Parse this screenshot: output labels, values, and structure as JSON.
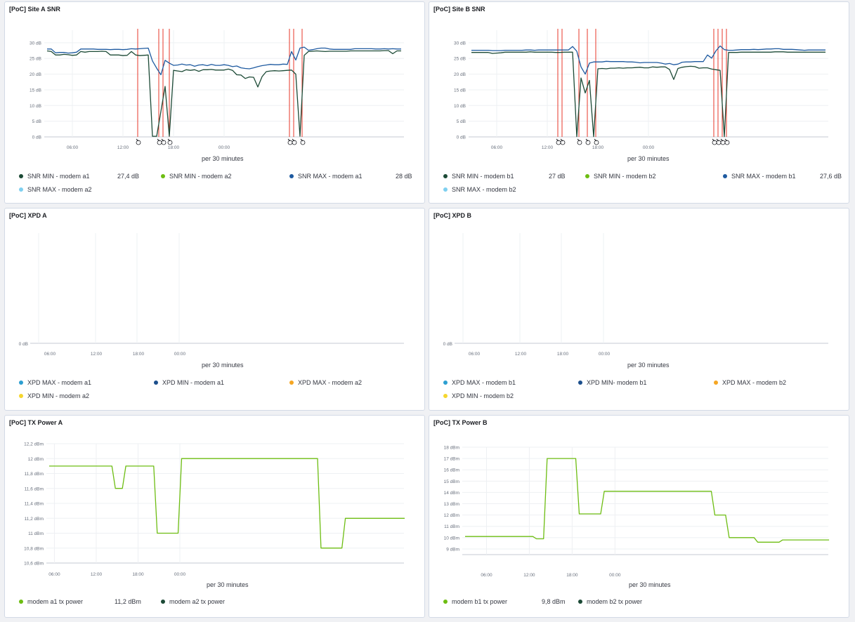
{
  "colors": {
    "grid": "#eef0f3",
    "axis": "#c5cad3",
    "tick_text": "#69707d",
    "annotation": "#e7372a",
    "dark_green": "#1c4a36",
    "lime": "#6dbd12",
    "blue": "#1e5aa0",
    "cyan": "#2d9fd1",
    "dark_blue": "#1c4f8c",
    "orange": "#f5a623",
    "yellow": "#f5d62e",
    "light_blue": "#7fd0f0"
  },
  "panels": [
    {
      "id": "snr-a",
      "title": "[PoC] Site A SNR",
      "x_title": "per 30 minutes",
      "chart_data": {
        "type": "line",
        "ylabel_unit": "dB",
        "y_ticks": [
          "0 dB",
          "5 dB",
          "10 dB",
          "15 dB",
          "20 dB",
          "25 dB",
          "30 dB"
        ],
        "ylim": [
          0,
          34
        ],
        "x_ticks": [
          "06:00",
          "12:00",
          "18:00",
          "00:00"
        ],
        "x_tick_idx": [
          6,
          18,
          30,
          42
        ],
        "annotations_x": [
          21.5,
          26.5,
          27.5,
          29,
          57.5,
          58.5,
          60.5
        ],
        "series": [
          {
            "name": "SNR MIN - modem a1",
            "color": "#1c4a36",
            "values": [
              27.4,
              27.2,
              26.1,
              26.1,
              26.3,
              26.2,
              26.0,
              26.1,
              27.2,
              27.0,
              27.2,
              27.2,
              27.2,
              27.3,
              27.2,
              26.1,
              26.1,
              26.1,
              25.9,
              26.0,
              27.2,
              26.1,
              25.9,
              26.0,
              26.1,
              0.2,
              0.2,
              8.1,
              16.1,
              0.2,
              21.2,
              21.0,
              20.8,
              21.4,
              21.2,
              21.4,
              20.9,
              21.4,
              21.4,
              21.5,
              21.3,
              21.3,
              21.3,
              21.6,
              21.2,
              19.8,
              19.7,
              18.6,
              19.1,
              19.0,
              15.9,
              19.2,
              20.8,
              21.0,
              21.1,
              21.0,
              21.1,
              21.2,
              21.3,
              20.0,
              0.2,
              26.0,
              27.2,
              27.3,
              27.4,
              27.3,
              27.2,
              27.3,
              27.3,
              27.3,
              27.3,
              27.3,
              27.4,
              27.4,
              27.4,
              27.4,
              27.4,
              27.4,
              27.4,
              27.4,
              27.5,
              27.5,
              26.5,
              27.4,
              27.4
            ]
          },
          {
            "name": "SNR MAX - modem a1",
            "color": "#1e5aa0",
            "values": [
              28.0,
              28.0,
              26.8,
              26.9,
              26.9,
              26.7,
              26.8,
              27.0,
              28.0,
              28.0,
              28.0,
              28.0,
              27.9,
              27.9,
              27.9,
              27.8,
              27.9,
              27.9,
              27.8,
              27.9,
              28.1,
              28.0,
              28.1,
              28.2,
              28.3,
              24.2,
              21.9,
              19.8,
              24.4,
              23.5,
              22.8,
              22.9,
              23.2,
              22.9,
              23.0,
              22.5,
              22.9,
              23.0,
              22.7,
              23.1,
              22.8,
              22.8,
              23.0,
              22.8,
              22.4,
              22.6,
              22.0,
              21.8,
              21.7,
              22.0,
              22.4,
              22.7,
              22.9,
              23.1,
              23.0,
              23.0,
              23.2,
              23.1,
              27.2,
              24.5,
              28.3,
              28.6,
              27.6,
              27.8,
              28.1,
              28.3,
              28.3,
              28.0,
              27.9,
              27.9,
              27.9,
              27.9,
              27.9,
              28.1,
              28.1,
              28.1,
              28.1,
              28.1,
              28.0,
              28.0,
              28.1,
              28.0,
              28.1,
              28.0,
              28.0
            ]
          }
        ]
      },
      "legend": [
        {
          "label": "SNR MIN - modem a1",
          "value": "27,4 dB",
          "color": "#1c4a36"
        },
        {
          "label": "SNR MIN - modem a2",
          "value": "",
          "color": "#6dbd12"
        },
        {
          "label": "SNR MAX - modem a1",
          "value": "28 dB",
          "color": "#1e5aa0"
        },
        {
          "label": "SNR MAX - modem a2",
          "value": "",
          "color": "#7fd0f0"
        }
      ]
    },
    {
      "id": "snr-b",
      "title": "[PoC] Site B SNR",
      "x_title": "per 30 minutes",
      "chart_data": {
        "type": "line",
        "ylabel_unit": "dB",
        "y_ticks": [
          "0 dB",
          "5 dB",
          "10 dB",
          "15 dB",
          "20 dB",
          "25 dB",
          "30 dB"
        ],
        "ylim": [
          0,
          34
        ],
        "x_ticks": [
          "06:00",
          "12:00",
          "18:00",
          "00:00"
        ],
        "x_tick_idx": [
          6,
          18,
          30,
          42
        ],
        "annotations_x": [
          20.5,
          21.5,
          25.5,
          27.5,
          29.5,
          57.5,
          58.5,
          59.5,
          60.5
        ],
        "series": [
          {
            "name": "SNR MIN - modem b1",
            "color": "#1c4a36",
            "values": [
              26.9,
              26.9,
              26.9,
              26.9,
              26.9,
              26.6,
              26.7,
              26.8,
              27.0,
              27.0,
              27.0,
              27.0,
              27.0,
              27.0,
              27.1,
              27.0,
              27.0,
              27.0,
              27.0,
              27.0,
              26.9,
              26.9,
              27.0,
              27.0,
              27.0,
              0.1,
              18.8,
              14.0,
              18.0,
              0.1,
              21.7,
              21.8,
              21.7,
              21.9,
              21.9,
              22.0,
              21.9,
              22.0,
              22.0,
              22.1,
              22.2,
              22.0,
              22.0,
              22.3,
              22.2,
              22.3,
              22.3,
              21.5,
              18.3,
              21.8,
              22.2,
              22.4,
              22.5,
              22.4,
              21.9,
              22.0,
              22.0,
              21.6,
              21.4,
              21.2,
              0.1,
              26.9,
              26.9,
              26.9,
              27.0,
              27.0,
              27.0,
              27.0,
              27.0,
              27.0,
              27.0,
              27.0,
              27.1,
              27.1,
              27.1,
              27.0,
              27.0,
              27.0,
              27.0,
              27.0,
              27.0,
              27.0,
              27.0,
              27.0,
              27.0
            ]
          },
          {
            "name": "SNR MAX - modem b1",
            "color": "#1e5aa0",
            "values": [
              27.6,
              27.6,
              27.6,
              27.6,
              27.6,
              27.5,
              27.5,
              27.5,
              27.6,
              27.6,
              27.6,
              27.6,
              27.6,
              27.7,
              27.7,
              27.6,
              27.7,
              27.7,
              27.7,
              27.7,
              27.7,
              27.7,
              27.7,
              27.7,
              28.8,
              27.3,
              22.3,
              20.0,
              23.5,
              23.9,
              23.9,
              23.9,
              24.1,
              24.0,
              24.0,
              24.0,
              24.0,
              23.9,
              23.9,
              23.8,
              23.6,
              23.7,
              23.7,
              23.7,
              23.7,
              23.5,
              23.2,
              23.4,
              23.0,
              23.2,
              23.8,
              23.9,
              23.9,
              24.0,
              24.0,
              24.0,
              26.1,
              25.1,
              27.4,
              29.0,
              27.8,
              27.6,
              27.6,
              27.7,
              27.8,
              27.8,
              27.8,
              27.9,
              27.8,
              27.9,
              28.0,
              28.0,
              28.1,
              28.1,
              27.9,
              27.9,
              27.9,
              27.8,
              27.7,
              27.6,
              27.7,
              27.7,
              27.7,
              27.7,
              27.7
            ]
          }
        ]
      },
      "legend": [
        {
          "label": "SNR MIN - modem b1",
          "value": "27 dB",
          "color": "#1c4a36"
        },
        {
          "label": "SNR MIN - modem b2",
          "value": "",
          "color": "#6dbd12"
        },
        {
          "label": "SNR MAX - modem b1",
          "value": "27,6 dB",
          "color": "#1e5aa0"
        },
        {
          "label": "SNR MAX - modem b2",
          "value": "",
          "color": "#7fd0f0"
        }
      ]
    },
    {
      "id": "xpd-a",
      "title": "[PoC] XPD A",
      "x_title": "per 30 minutes",
      "chart_data": {
        "type": "line",
        "y_ticks": [
          "0 dB"
        ],
        "x_ticks": [
          "06:00",
          "12:00",
          "18:00",
          "00:00"
        ],
        "series": []
      },
      "legend": [
        {
          "label": "XPD MAX - modem a1",
          "value": "",
          "color": "#2d9fd1"
        },
        {
          "label": "XPD MIN - modem a1",
          "value": "",
          "color": "#1c4f8c"
        },
        {
          "label": "XPD MAX - modem a2",
          "value": "",
          "color": "#f5a623"
        },
        {
          "label": "XPD MIN - modem a2",
          "value": "",
          "color": "#f5d62e"
        }
      ]
    },
    {
      "id": "xpd-b",
      "title": "[PoC] XPD B",
      "x_title": "per 30 minutes",
      "chart_data": {
        "type": "line",
        "y_ticks": [
          "0 dB"
        ],
        "x_ticks": [
          "06:00",
          "12:00",
          "18:00",
          "00:00"
        ],
        "series": []
      },
      "legend": [
        {
          "label": "XPD MAX - modem b1",
          "value": "",
          "color": "#2d9fd1"
        },
        {
          "label": "XPD MIN- modem b1",
          "value": "",
          "color": "#1c4f8c"
        },
        {
          "label": "XPD MAX - modem b2",
          "value": "",
          "color": "#f5a623"
        },
        {
          "label": "XPD MIN - modem b2",
          "value": "",
          "color": "#f5d62e"
        }
      ]
    },
    {
      "id": "tx-a",
      "title": "[PoC] TX Power A",
      "x_title": "per 30 minutes",
      "chart_data": {
        "type": "line",
        "y_ticks": [
          "10,6 dBm",
          "10,8 dBm",
          "11 dBm",
          "11,2 dBm",
          "11,4 dBm",
          "11,6 dBm",
          "11,8 dBm",
          "12 dBm",
          "12,2 dBm"
        ],
        "ylim": [
          10.6,
          12.2
        ],
        "x_ticks": [
          "06:00",
          "12:00",
          "18:00",
          "00:00"
        ],
        "x_tick_idx": [
          1.5,
          13.5,
          25.5,
          37.5
        ],
        "series": [
          {
            "name": "modem a1 tx power",
            "color": "#6dbd12",
            "points": [
              [
                0,
                11.9
              ],
              [
                18,
                11.9
              ],
              [
                19,
                11.6
              ],
              [
                21,
                11.6
              ],
              [
                22,
                11.9
              ],
              [
                30,
                11.9
              ],
              [
                31,
                11.0
              ],
              [
                37,
                11.0
              ],
              [
                38,
                12.0
              ],
              [
                77,
                12.0
              ],
              [
                78,
                10.8
              ],
              [
                84,
                10.8
              ],
              [
                85,
                11.2
              ],
              [
                102,
                11.2
              ]
            ]
          }
        ]
      },
      "legend": [
        {
          "label": "modem a1 tx power",
          "value": "11,2 dBm",
          "color": "#6dbd12"
        },
        {
          "label": "modem a2 tx power",
          "value": "",
          "color": "#1c4a36"
        }
      ]
    },
    {
      "id": "tx-b",
      "title": "[PoC] TX Power B",
      "x_title": "per 30 minutes",
      "chart_data": {
        "type": "line",
        "y_ticks": [
          "9 dBm",
          "10 dBm",
          "11 dBm",
          "12 dBm",
          "13 dBm",
          "14 dBm",
          "15 dBm",
          "16 dBm",
          "17 dBm",
          "18 dBm"
        ],
        "ylim": [
          8.5,
          18
        ],
        "x_ticks": [
          "06:00",
          "12:00",
          "18:00",
          "00:00"
        ],
        "x_tick_idx": [
          6,
          18,
          30,
          42
        ],
        "series": [
          {
            "name": "modem b1 tx power",
            "color": "#6dbd12",
            "points": [
              [
                0,
                10.1
              ],
              [
                19,
                10.1
              ],
              [
                20,
                9.9
              ],
              [
                22,
                9.9
              ],
              [
                23,
                17.0
              ],
              [
                31,
                17.0
              ],
              [
                32,
                12.1
              ],
              [
                38,
                12.1
              ],
              [
                39,
                14.1
              ],
              [
                69,
                14.1
              ],
              [
                70,
                12.0
              ],
              [
                73,
                12.0
              ],
              [
                74,
                10.0
              ],
              [
                81,
                10.0
              ],
              [
                82,
                9.6
              ],
              [
                88,
                9.6
              ],
              [
                89,
                9.8
              ],
              [
                102,
                9.8
              ]
            ]
          }
        ]
      },
      "legend": [
        {
          "label": "modem b1 tx power",
          "value": "9,8 dBm",
          "color": "#6dbd12"
        },
        {
          "label": "modem b2 tx power",
          "value": "",
          "color": "#1c4a36"
        }
      ]
    }
  ]
}
